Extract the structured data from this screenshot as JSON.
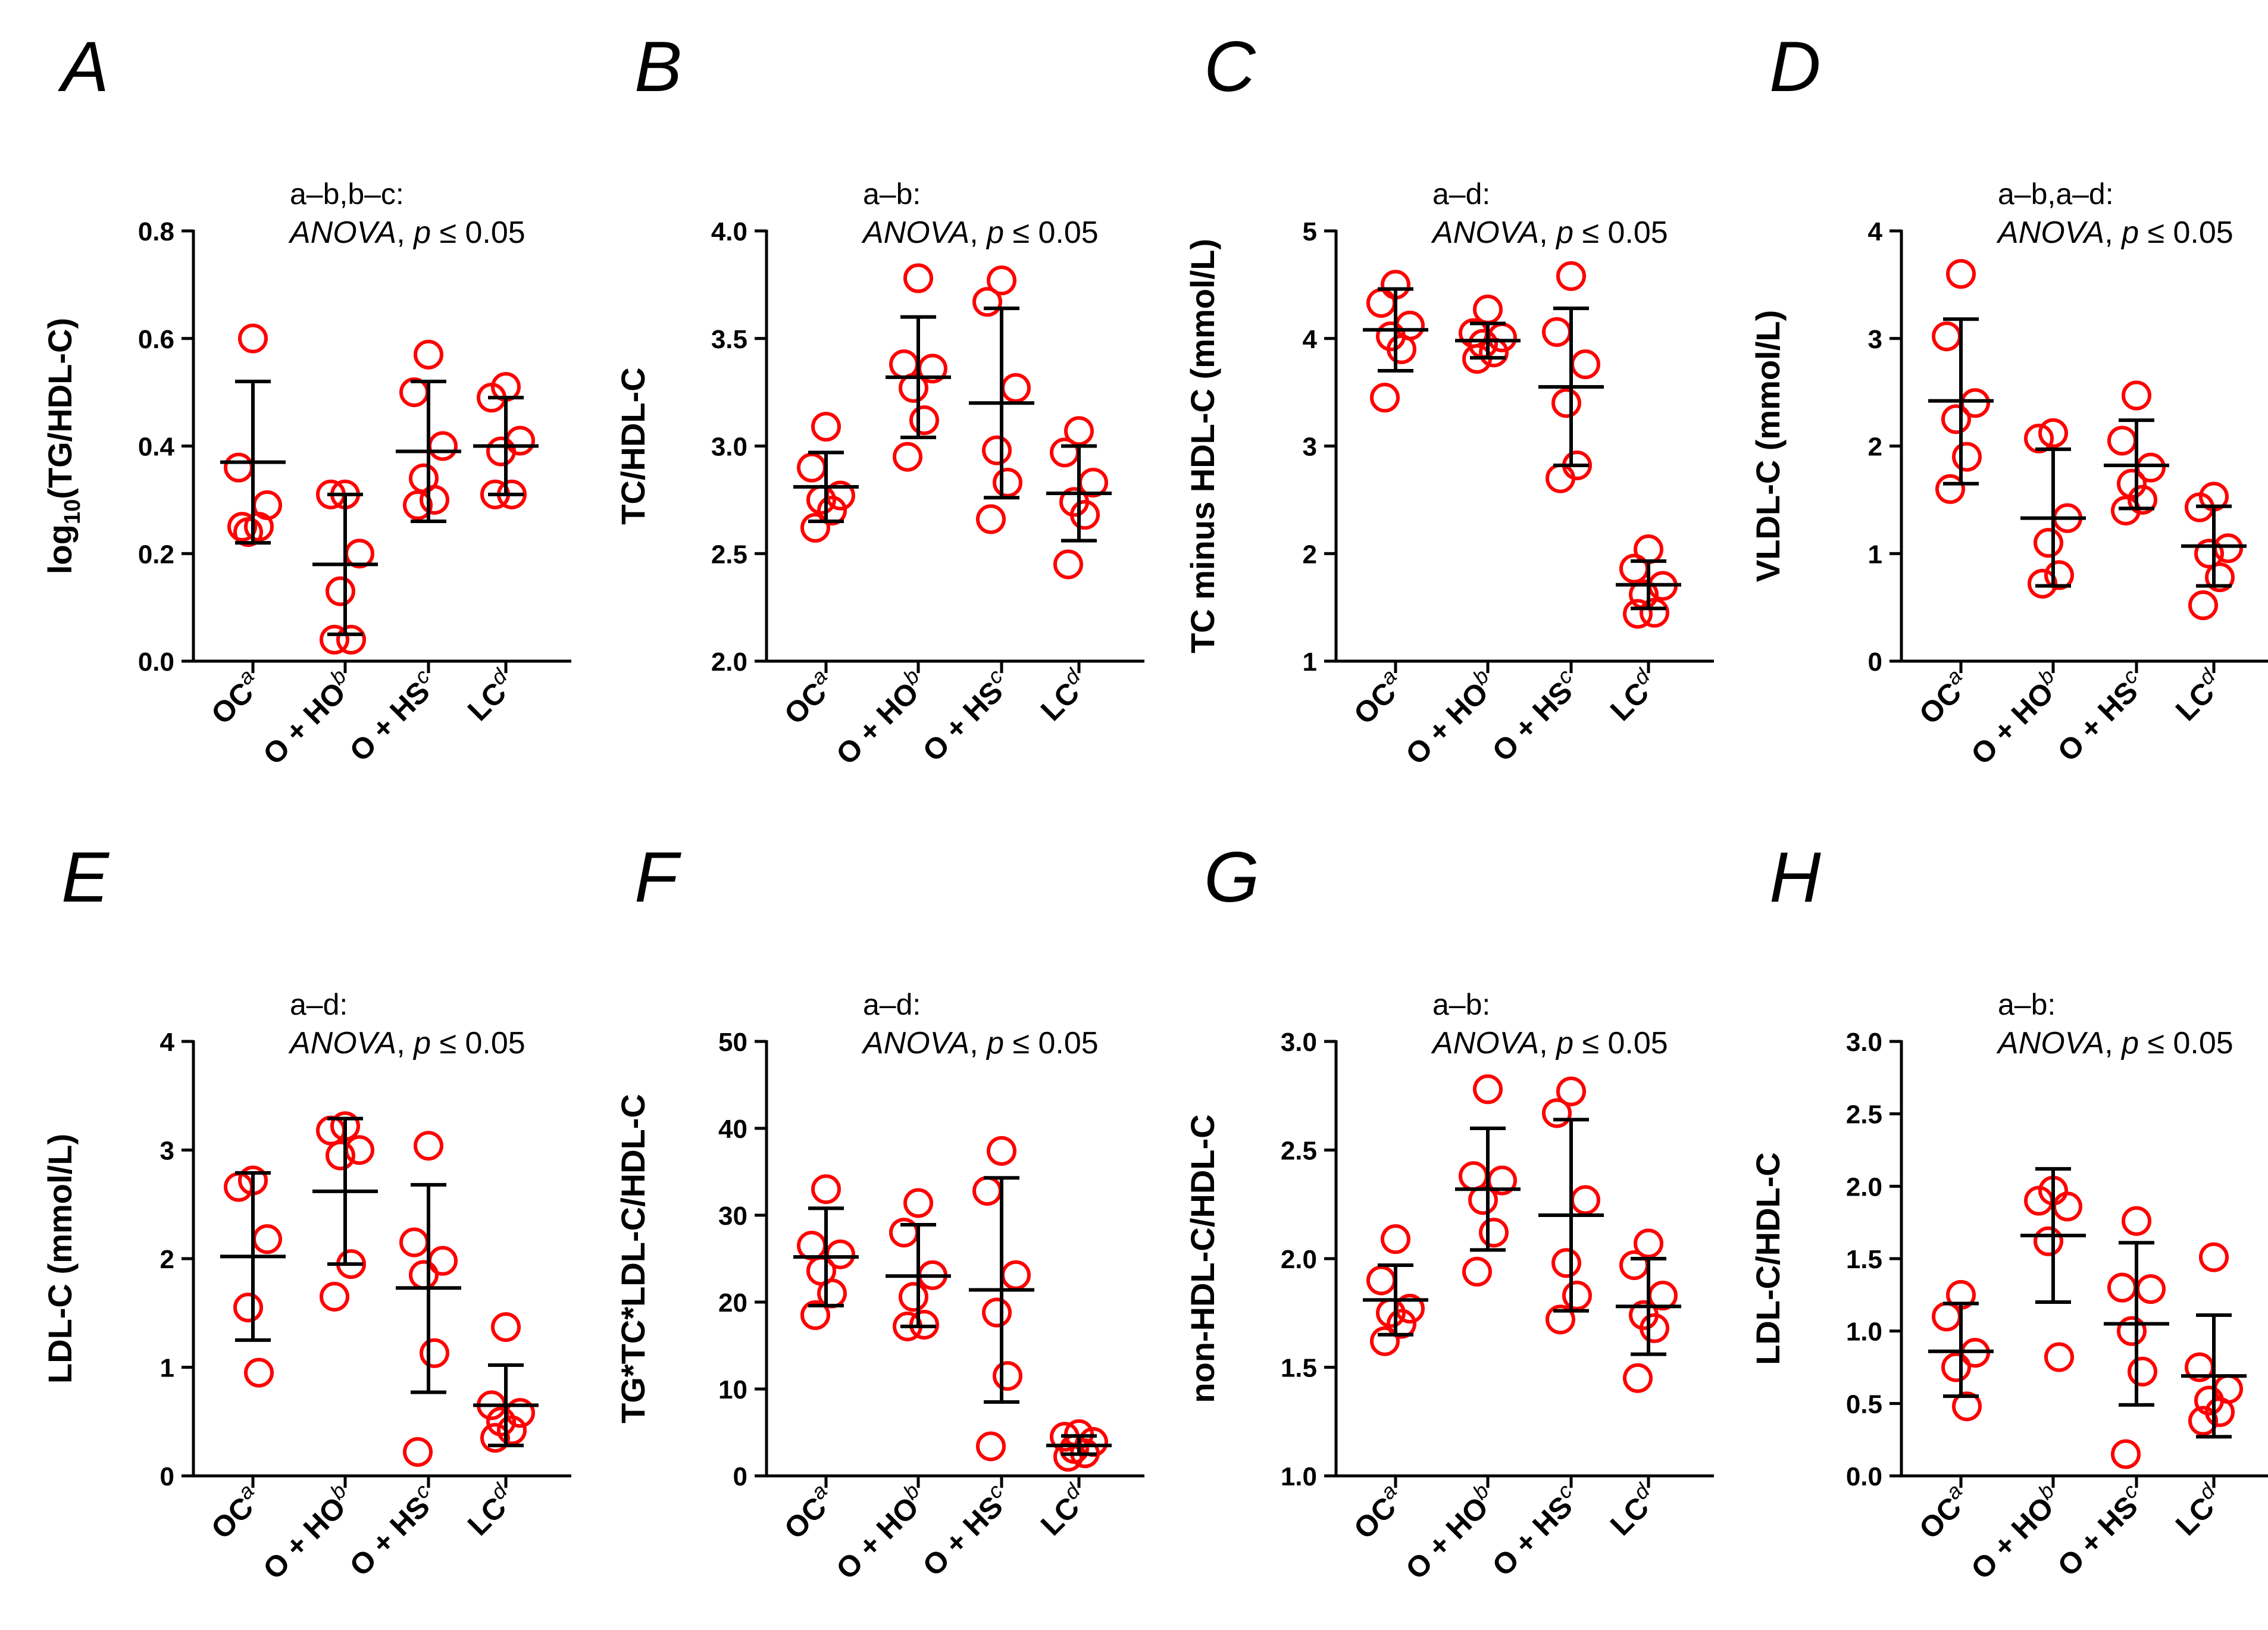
{
  "chart_data": [
    {
      "id": "A",
      "panel_label": "A",
      "type": "scatter",
      "sig_text": "a–b,b–c:",
      "test_label": "ANOVA",
      "p_label": "p",
      "p_rest": " ≤ 0.05",
      "ylabel": "log10(TG/HDL-C)",
      "ylabel_main": "log",
      "ylabel_sub": "10",
      "ylabel_tail": "(TG/HDL-C)",
      "ylim": [
        0,
        0.8
      ],
      "yticks": [
        "0.0",
        "0.2",
        "0.4",
        "0.6",
        "0.8"
      ],
      "categories": [
        {
          "name": "OC",
          "sup": "a",
          "mean": 0.37,
          "sd_low": 0.22,
          "sd_high": 0.52,
          "points": [
            0.6,
            0.36,
            0.29,
            0.24,
            0.25,
            0.25
          ]
        },
        {
          "name": "O + HO",
          "sup": "b",
          "mean": 0.18,
          "sd_low": 0.05,
          "sd_high": 0.31,
          "points": [
            0.31,
            0.31,
            0.2,
            0.13,
            0.04,
            0.04
          ]
        },
        {
          "name": "O + HS",
          "sup": "c",
          "mean": 0.39,
          "sd_low": 0.26,
          "sd_high": 0.52,
          "points": [
            0.57,
            0.5,
            0.4,
            0.34,
            0.3,
            0.29
          ]
        },
        {
          "name": "LC",
          "sup": "d",
          "mean": 0.4,
          "sd_low": 0.31,
          "sd_high": 0.49,
          "points": [
            0.51,
            0.49,
            0.41,
            0.39,
            0.31,
            0.31
          ]
        }
      ]
    },
    {
      "id": "B",
      "panel_label": "B",
      "type": "scatter",
      "sig_text": "a–b:",
      "test_label": "ANOVA",
      "p_label": "p",
      "p_rest": " ≤ 0.05",
      "ylabel": "TC/HDL-C",
      "ylabel_main": "TC/HDL-C",
      "ylabel_sub": "",
      "ylabel_tail": "",
      "ylim": [
        2,
        4
      ],
      "yticks": [
        "2.0",
        "2.5",
        "3.0",
        "3.5",
        "4.0"
      ],
      "categories": [
        {
          "name": "OC",
          "sup": "a",
          "mean": 2.81,
          "sd_low": 2.65,
          "sd_high": 2.97,
          "points": [
            3.09,
            2.9,
            2.77,
            2.75,
            2.7,
            2.62
          ]
        },
        {
          "name": "O + HO",
          "sup": "b",
          "mean": 3.32,
          "sd_low": 3.04,
          "sd_high": 3.6,
          "points": [
            3.78,
            3.38,
            3.36,
            3.27,
            3.12,
            2.95
          ]
        },
        {
          "name": "O + HS",
          "sup": "c",
          "mean": 3.2,
          "sd_low": 2.76,
          "sd_high": 3.64,
          "points": [
            3.77,
            3.67,
            3.27,
            2.98,
            2.83,
            2.66
          ]
        },
        {
          "name": "LC",
          "sup": "d",
          "mean": 2.78,
          "sd_low": 2.56,
          "sd_high": 3.0,
          "points": [
            3.07,
            2.97,
            2.83,
            2.74,
            2.68,
            2.45
          ]
        }
      ]
    },
    {
      "id": "C",
      "panel_label": "C",
      "type": "scatter",
      "sig_text": "a–d:",
      "test_label": "ANOVA",
      "p_label": "p",
      "p_rest": " ≤ 0.05",
      "ylabel": "TC minus HDL-C (mmol/L)",
      "ylabel_main": "TC minus HDL-C (mmol/L)",
      "ylabel_sub": "",
      "ylabel_tail": "",
      "ylim": [
        1,
        5
      ],
      "yticks": [
        "1",
        "2",
        "3",
        "4",
        "5"
      ],
      "categories": [
        {
          "name": "OC",
          "sup": "a",
          "mean": 4.08,
          "sd_low": 3.7,
          "sd_high": 4.46,
          "points": [
            4.5,
            4.33,
            4.12,
            4.02,
            3.9,
            3.45
          ]
        },
        {
          "name": "O + HO",
          "sup": "b",
          "mean": 3.98,
          "sd_low": 3.82,
          "sd_high": 4.14,
          "points": [
            4.27,
            4.05,
            4.01,
            3.95,
            3.87,
            3.81
          ]
        },
        {
          "name": "O + HS",
          "sup": "c",
          "mean": 3.55,
          "sd_low": 2.82,
          "sd_high": 4.28,
          "points": [
            4.58,
            4.06,
            3.76,
            3.4,
            2.82,
            2.7
          ]
        },
        {
          "name": "LC",
          "sup": "d",
          "mean": 1.71,
          "sd_low": 1.49,
          "sd_high": 1.93,
          "points": [
            2.04,
            1.86,
            1.7,
            1.62,
            1.45,
            1.44
          ]
        }
      ]
    },
    {
      "id": "D",
      "panel_label": "D",
      "type": "scatter",
      "sig_text": "a–b,a–d:",
      "test_label": "ANOVA",
      "p_label": "p",
      "p_rest": " ≤ 0.05",
      "ylabel": "VLDL-C (mmol/L)",
      "ylabel_main": "VLDL-C (mmol/L)",
      "ylabel_sub": "",
      "ylabel_tail": "",
      "ylim": [
        0,
        4
      ],
      "yticks": [
        "0",
        "1",
        "2",
        "3",
        "4"
      ],
      "categories": [
        {
          "name": "OC",
          "sup": "a",
          "mean": 2.42,
          "sd_low": 1.65,
          "sd_high": 3.18,
          "points": [
            3.6,
            3.02,
            2.4,
            2.25,
            1.9,
            1.6
          ]
        },
        {
          "name": "O + HO",
          "sup": "b",
          "mean": 1.33,
          "sd_low": 0.7,
          "sd_high": 1.97,
          "points": [
            2.12,
            2.07,
            1.33,
            1.1,
            0.8,
            0.72
          ]
        },
        {
          "name": "O + HS",
          "sup": "c",
          "mean": 1.82,
          "sd_low": 1.42,
          "sd_high": 2.24,
          "points": [
            2.47,
            2.05,
            1.8,
            1.65,
            1.5,
            1.4
          ]
        },
        {
          "name": "LC",
          "sup": "d",
          "mean": 1.07,
          "sd_low": 0.7,
          "sd_high": 1.44,
          "points": [
            1.53,
            1.43,
            1.05,
            1.0,
            0.78,
            0.52
          ]
        }
      ]
    },
    {
      "id": "E",
      "panel_label": "E",
      "type": "scatter",
      "sig_text": "a–d:",
      "test_label": "ANOVA",
      "p_label": "p",
      "p_rest": " ≤ 0.05",
      "ylabel": "LDL-C (mmol/L)",
      "ylabel_main": "LDL-C (mmol/L)",
      "ylabel_sub": "",
      "ylabel_tail": "",
      "ylim": [
        0,
        4
      ],
      "yticks": [
        "0",
        "1",
        "2",
        "3",
        "4"
      ],
      "categories": [
        {
          "name": "OC",
          "sup": "a",
          "mean": 2.02,
          "sd_low": 1.25,
          "sd_high": 2.79,
          "points": [
            2.72,
            2.66,
            2.18,
            1.55,
            0.95
          ]
        },
        {
          "name": "O + HO",
          "sup": "b",
          "mean": 2.62,
          "sd_low": 1.95,
          "sd_high": 3.29,
          "points": [
            3.22,
            3.18,
            3.0,
            2.95,
            1.95,
            1.65
          ]
        },
        {
          "name": "O + HS",
          "sup": "c",
          "mean": 1.73,
          "sd_low": 0.77,
          "sd_high": 2.68,
          "points": [
            3.04,
            2.15,
            1.98,
            1.85,
            1.13,
            0.22
          ]
        },
        {
          "name": "LC",
          "sup": "d",
          "mean": 0.65,
          "sd_low": 0.28,
          "sd_high": 1.02,
          "points": [
            1.37,
            0.65,
            0.58,
            0.5,
            0.42,
            0.35
          ]
        }
      ]
    },
    {
      "id": "F",
      "panel_label": "F",
      "type": "scatter",
      "sig_text": "a–d:",
      "test_label": "ANOVA",
      "p_label": "p",
      "p_rest": " ≤ 0.05",
      "ylabel": "TG*TC*LDL-C/HDL-C",
      "ylabel_main": "TG*TC*LDL-C/HDL-C",
      "ylabel_sub": "",
      "ylabel_tail": "",
      "ylim": [
        0,
        50
      ],
      "yticks": [
        "0",
        "10",
        "20",
        "30",
        "40",
        "50"
      ],
      "categories": [
        {
          "name": "OC",
          "sup": "a",
          "mean": 25.2,
          "sd_low": 19.6,
          "sd_high": 30.8,
          "points": [
            33.0,
            26.5,
            25.5,
            23.6,
            21.0,
            18.5
          ]
        },
        {
          "name": "O + HO",
          "sup": "b",
          "mean": 23.0,
          "sd_low": 17.2,
          "sd_high": 28.9,
          "points": [
            31.4,
            28.0,
            23.1,
            20.6,
            17.4,
            17.2
          ]
        },
        {
          "name": "O + HS",
          "sup": "c",
          "mean": 21.4,
          "sd_low": 8.5,
          "sd_high": 34.3,
          "points": [
            37.4,
            32.8,
            23.1,
            18.8,
            11.5,
            3.4
          ]
        },
        {
          "name": "LC",
          "sup": "d",
          "mean": 3.5,
          "sd_low": 2.5,
          "sd_high": 4.6,
          "points": [
            4.8,
            4.5,
            3.9,
            3.1,
            2.6,
            2.2
          ]
        }
      ]
    },
    {
      "id": "G",
      "panel_label": "G",
      "type": "scatter",
      "sig_text": "a–b:",
      "test_label": "ANOVA",
      "p_label": "p",
      "p_rest": " ≤ 0.05",
      "ylabel": "non-HDL-C/HDL-C",
      "ylabel_main": "non-HDL-C/HDL-C",
      "ylabel_sub": "",
      "ylabel_tail": "",
      "ylim": [
        1,
        3
      ],
      "yticks": [
        "1.0",
        "1.5",
        "2.0",
        "2.5",
        "3.0"
      ],
      "categories": [
        {
          "name": "OC",
          "sup": "a",
          "mean": 1.81,
          "sd_low": 1.65,
          "sd_high": 1.97,
          "points": [
            2.09,
            1.9,
            1.77,
            1.75,
            1.7,
            1.62
          ]
        },
        {
          "name": "O + HO",
          "sup": "b",
          "mean": 2.32,
          "sd_low": 2.04,
          "sd_high": 2.6,
          "points": [
            2.78,
            2.38,
            2.36,
            2.27,
            2.12,
            1.94
          ]
        },
        {
          "name": "O + HS",
          "sup": "c",
          "mean": 2.2,
          "sd_low": 1.76,
          "sd_high": 2.64,
          "points": [
            2.77,
            2.67,
            2.27,
            1.98,
            1.83,
            1.72
          ]
        },
        {
          "name": "LC",
          "sup": "d",
          "mean": 1.78,
          "sd_low": 1.56,
          "sd_high": 2.0,
          "points": [
            2.07,
            1.97,
            1.83,
            1.74,
            1.68,
            1.45
          ]
        }
      ]
    },
    {
      "id": "H",
      "panel_label": "H",
      "type": "scatter",
      "sig_text": "a–b:",
      "test_label": "ANOVA",
      "p_label": "p",
      "p_rest": " ≤ 0.05",
      "ylabel": "LDL-C/HDL-C",
      "ylabel_main": "LDL-C/HDL-C",
      "ylabel_sub": "",
      "ylabel_tail": "",
      "ylim": [
        0,
        3
      ],
      "yticks": [
        "0.0",
        "0.5",
        "1.0",
        "1.5",
        "2.0",
        "2.5",
        "3.0"
      ],
      "categories": [
        {
          "name": "OC",
          "sup": "a",
          "mean": 0.86,
          "sd_low": 0.55,
          "sd_high": 1.19,
          "points": [
            1.25,
            1.1,
            0.85,
            0.75,
            0.48
          ]
        },
        {
          "name": "O + HO",
          "sup": "b",
          "mean": 1.66,
          "sd_low": 1.2,
          "sd_high": 2.12,
          "points": [
            1.97,
            1.9,
            1.86,
            1.62,
            0.82
          ]
        },
        {
          "name": "O + HS",
          "sup": "c",
          "mean": 1.05,
          "sd_low": 0.49,
          "sd_high": 1.61,
          "points": [
            1.76,
            1.3,
            1.29,
            1.0,
            0.72,
            0.15
          ]
        },
        {
          "name": "LC",
          "sup": "d",
          "mean": 0.69,
          "sd_low": 0.27,
          "sd_high": 1.11,
          "points": [
            1.51,
            0.75,
            0.6,
            0.52,
            0.44,
            0.38
          ]
        }
      ]
    }
  ]
}
